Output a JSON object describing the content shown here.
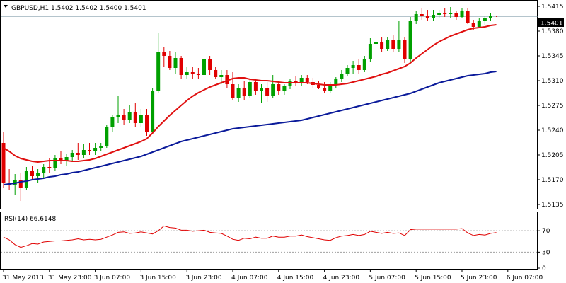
{
  "symbol_header": "GBPUSD,H1  1.5402 1.5402 1.5400 1.5401",
  "colors": {
    "frame": "#000000",
    "candle_up": "#00a000",
    "candle_down": "#e00000",
    "sma_fast": "#e01010",
    "sma_slow": "#0a1a9a",
    "rsi_line": "#e00000",
    "rsi_levels": "#a0a0a0",
    "current_price_line": "#6a8a9a"
  },
  "chart_data": [
    {
      "type": "candlestick",
      "title": "",
      "symbol": "GBPUSD",
      "timeframe": "H1",
      "ohlc_label": "1.5402 1.5402 1.5400 1.5401",
      "current_price": 1.5401,
      "current_price_label": "1.5401",
      "ylim": [
        1.5131,
        1.5421
      ],
      "y_ticks": [
        "1.5415",
        "1.5380",
        "1.5345",
        "1.5310",
        "1.5275",
        "1.5240",
        "1.5205",
        "1.5170",
        "1.5135"
      ],
      "y_tick_values": [
        1.5415,
        1.538,
        1.5345,
        1.531,
        1.5275,
        1.524,
        1.5205,
        1.517,
        1.5135
      ],
      "x_ticks": [
        "31 May 2013",
        "31 May 23:00",
        "3 Jun 07:00",
        "3 Jun 15:00",
        "3 Jun 23:00",
        "4 Jun 07:00",
        "4 Jun 15:00",
        "4 Jun 23:00",
        "5 Jun 07:00",
        "5 Jun 15:00",
        "5 Jun 23:00",
        "6 Jun 07:00"
      ],
      "x_tick_index": [
        0,
        8,
        16,
        24,
        32,
        40,
        48,
        56,
        64,
        72,
        80,
        88
      ],
      "candles": [
        [
          1.5222,
          1.5238,
          1.5158,
          1.5165
        ],
        [
          1.5165,
          1.5185,
          1.5155,
          1.5162
        ],
        [
          1.5162,
          1.5178,
          1.5148,
          1.517
        ],
        [
          1.517,
          1.518,
          1.514,
          1.5158
        ],
        [
          1.5158,
          1.5188,
          1.5155,
          1.5182
        ],
        [
          1.5182,
          1.519,
          1.517,
          1.5175
        ],
        [
          1.5175,
          1.5185,
          1.5165,
          1.518
        ],
        [
          1.518,
          1.5192,
          1.5172,
          1.5188
        ],
        [
          1.5188,
          1.52,
          1.518,
          1.5186
        ],
        [
          1.5186,
          1.5205,
          1.5183,
          1.52
        ],
        [
          1.52,
          1.521,
          1.5192,
          1.5196
        ],
        [
          1.5196,
          1.5206,
          1.519,
          1.5202
        ],
        [
          1.5202,
          1.5212,
          1.5196,
          1.5208
        ],
        [
          1.5208,
          1.5222,
          1.5198,
          1.5205
        ],
        [
          1.5205,
          1.522,
          1.52,
          1.5212
        ],
        [
          1.5212,
          1.5222,
          1.5205,
          1.521
        ],
        [
          1.521,
          1.5222,
          1.5205,
          1.5215
        ],
        [
          1.5215,
          1.5222,
          1.521,
          1.5218
        ],
        [
          1.5218,
          1.5248,
          1.5215,
          1.5245
        ],
        [
          1.5245,
          1.5262,
          1.5238,
          1.5258
        ],
        [
          1.5258,
          1.5288,
          1.525,
          1.5262
        ],
        [
          1.5262,
          1.527,
          1.5248,
          1.5255
        ],
        [
          1.5255,
          1.5275,
          1.525,
          1.5265
        ],
        [
          1.5265,
          1.5278,
          1.5245,
          1.525
        ],
        [
          1.525,
          1.527,
          1.5245,
          1.5262
        ],
        [
          1.5262,
          1.527,
          1.5232,
          1.5238
        ],
        [
          1.5238,
          1.53,
          1.5235,
          1.5295
        ],
        [
          1.5295,
          1.5378,
          1.5292,
          1.535
        ],
        [
          1.535,
          1.5358,
          1.533,
          1.5345
        ],
        [
          1.5345,
          1.5352,
          1.5325,
          1.5328
        ],
        [
          1.5328,
          1.535,
          1.532,
          1.5342
        ],
        [
          1.5342,
          1.5345,
          1.5312,
          1.5318
        ],
        [
          1.5318,
          1.533,
          1.5312,
          1.5322
        ],
        [
          1.5322,
          1.533,
          1.5312,
          1.532
        ],
        [
          1.532,
          1.5328,
          1.5312,
          1.5318
        ],
        [
          1.5318,
          1.5345,
          1.5315,
          1.534
        ],
        [
          1.534,
          1.5345,
          1.5318,
          1.5325
        ],
        [
          1.5325,
          1.533,
          1.5312,
          1.5315
        ],
        [
          1.5315,
          1.5325,
          1.5305,
          1.5318
        ],
        [
          1.5318,
          1.5325,
          1.53,
          1.5305
        ],
        [
          1.5305,
          1.5322,
          1.5282,
          1.5285
        ],
        [
          1.5285,
          1.5305,
          1.528,
          1.53
        ],
        [
          1.53,
          1.531,
          1.5282,
          1.5288
        ],
        [
          1.5288,
          1.5312,
          1.5285,
          1.5308
        ],
        [
          1.5308,
          1.5312,
          1.529,
          1.5295
        ],
        [
          1.5295,
          1.5305,
          1.5278,
          1.53
        ],
        [
          1.53,
          1.5308,
          1.528,
          1.5288
        ],
        [
          1.5288,
          1.5318,
          1.5285,
          1.5305
        ],
        [
          1.5305,
          1.531,
          1.529,
          1.5295
        ],
        [
          1.5295,
          1.5305,
          1.529,
          1.5302
        ],
        [
          1.5302,
          1.5312,
          1.5298,
          1.531
        ],
        [
          1.531,
          1.5316,
          1.5302,
          1.5306
        ],
        [
          1.5306,
          1.5318,
          1.5302,
          1.5314
        ],
        [
          1.5314,
          1.5318,
          1.5305,
          1.5308
        ],
        [
          1.5308,
          1.5314,
          1.53,
          1.5304
        ],
        [
          1.5304,
          1.531,
          1.5298,
          1.53
        ],
        [
          1.53,
          1.5308,
          1.5292,
          1.5296
        ],
        [
          1.5296,
          1.5308,
          1.5292,
          1.5304
        ],
        [
          1.5304,
          1.5315,
          1.53,
          1.5312
        ],
        [
          1.5312,
          1.5325,
          1.5308,
          1.532
        ],
        [
          1.532,
          1.5332,
          1.5316,
          1.5328
        ],
        [
          1.5328,
          1.5338,
          1.532,
          1.5332
        ],
        [
          1.5332,
          1.534,
          1.532,
          1.5325
        ],
        [
          1.5325,
          1.5345,
          1.5322,
          1.534
        ],
        [
          1.534,
          1.537,
          1.5336,
          1.5362
        ],
        [
          1.5362,
          1.5372,
          1.5352,
          1.5365
        ],
        [
          1.5365,
          1.5372,
          1.535,
          1.5355
        ],
        [
          1.5355,
          1.5372,
          1.5352,
          1.5368
        ],
        [
          1.5368,
          1.5375,
          1.535,
          1.5355
        ],
        [
          1.5355,
          1.5395,
          1.535,
          1.5368
        ],
        [
          1.5368,
          1.5372,
          1.5335,
          1.534
        ],
        [
          1.534,
          1.54,
          1.5335,
          1.5395
        ],
        [
          1.5395,
          1.5408,
          1.539,
          1.5404
        ],
        [
          1.5404,
          1.5412,
          1.5396,
          1.5402
        ],
        [
          1.5402,
          1.541,
          1.5395,
          1.5398
        ],
        [
          1.5398,
          1.541,
          1.5394,
          1.5403
        ],
        [
          1.5403,
          1.541,
          1.5398,
          1.5406
        ],
        [
          1.5406,
          1.5412,
          1.54,
          1.5404
        ],
        [
          1.5404,
          1.5414,
          1.5398,
          1.5405
        ],
        [
          1.5405,
          1.5408,
          1.5396,
          1.54
        ],
        [
          1.54,
          1.5412,
          1.5398,
          1.5408
        ],
        [
          1.5408,
          1.5412,
          1.539,
          1.5392
        ],
        [
          1.5392,
          1.5396,
          1.5382,
          1.5386
        ],
        [
          1.5386,
          1.5398,
          1.5384,
          1.5394
        ],
        [
          1.5394,
          1.5402,
          1.5388,
          1.5398
        ],
        [
          1.5398,
          1.5405,
          1.5395,
          1.5402
        ],
        [
          1.5402,
          1.5402,
          1.54,
          1.5401
        ]
      ],
      "series": [
        {
          "kind": "sma",
          "values": [
            1.5215,
            1.521,
            1.5204,
            1.52,
            1.5198,
            1.5196,
            1.5195,
            1.5196,
            1.5197,
            1.5197,
            1.5197,
            1.5197,
            1.5196,
            1.5196,
            1.5197,
            1.5198,
            1.52,
            1.5203,
            1.5206,
            1.5209,
            1.5212,
            1.5215,
            1.5218,
            1.5221,
            1.5224,
            1.5228,
            1.5236,
            1.5245,
            1.5253,
            1.5261,
            1.5268,
            1.5275,
            1.5282,
            1.5288,
            1.5293,
            1.5297,
            1.5301,
            1.5304,
            1.5307,
            1.531,
            1.5313,
            1.5314,
            1.5314,
            1.5312,
            1.5311,
            1.531,
            1.531,
            1.5309,
            1.5308,
            1.5307,
            1.5307,
            1.5307,
            1.5307,
            1.5307,
            1.5306,
            1.5305,
            1.5304,
            1.5304,
            1.5304,
            1.5305,
            1.5306,
            1.5308,
            1.531,
            1.5312,
            1.5314,
            1.5316,
            1.5319,
            1.5321,
            1.5324,
            1.5327,
            1.533,
            1.5335,
            1.5342,
            1.5348,
            1.5354,
            1.536,
            1.5365,
            1.5369,
            1.5373,
            1.5376,
            1.5379,
            1.5382,
            1.5384,
            1.5385,
            1.5386,
            1.5388,
            1.5389
          ]
        },
        {
          "kind": "sma",
          "values": [
            1.5163,
            1.5164,
            1.5165,
            1.5167,
            1.5168,
            1.517,
            1.5171,
            1.5172,
            1.5174,
            1.5175,
            1.5177,
            1.5178,
            1.518,
            1.5181,
            1.5183,
            1.5185,
            1.5187,
            1.5189,
            1.5191,
            1.5193,
            1.5195,
            1.5197,
            1.5199,
            1.5201,
            1.5203,
            1.5206,
            1.5209,
            1.5212,
            1.5215,
            1.5218,
            1.5221,
            1.5224,
            1.5226,
            1.5228,
            1.523,
            1.5232,
            1.5234,
            1.5236,
            1.5238,
            1.524,
            1.5242,
            1.5243,
            1.5244,
            1.5245,
            1.5246,
            1.5247,
            1.5248,
            1.5249,
            1.525,
            1.5251,
            1.5252,
            1.5253,
            1.5254,
            1.5256,
            1.5258,
            1.526,
            1.5262,
            1.5264,
            1.5266,
            1.5268,
            1.527,
            1.5272,
            1.5274,
            1.5276,
            1.5278,
            1.528,
            1.5282,
            1.5284,
            1.5286,
            1.5288,
            1.529,
            1.5292,
            1.5295,
            1.5298,
            1.5301,
            1.5304,
            1.5307,
            1.5309,
            1.5311,
            1.5313,
            1.5315,
            1.5317,
            1.5318,
            1.5319,
            1.532,
            1.5322,
            1.5323
          ]
        }
      ]
    },
    {
      "type": "line",
      "title": "RSI(14) 66.6148",
      "ylim": [
        0,
        100
      ],
      "levels": [
        70,
        30
      ],
      "y_ticks": [
        "70",
        "30",
        "0"
      ],
      "y_tick_values": [
        70,
        30,
        0
      ],
      "series": [
        {
          "name": "RSI(14)",
          "values": [
            58,
            53,
            44,
            39,
            42,
            46,
            45,
            49,
            50,
            51,
            51,
            52,
            53,
            55,
            53,
            54,
            53,
            54,
            58,
            62,
            67,
            68,
            65,
            66,
            68,
            66,
            64,
            70,
            79,
            76,
            75,
            71,
            71,
            69,
            70,
            71,
            67,
            66,
            65,
            60,
            54,
            52,
            56,
            55,
            58,
            56,
            56,
            60,
            58,
            58,
            60,
            60,
            62,
            59,
            57,
            55,
            53,
            52,
            57,
            60,
            61,
            63,
            61,
            63,
            69,
            67,
            65,
            67,
            65,
            66,
            61,
            72,
            73,
            73,
            73,
            73,
            73,
            73,
            73,
            73,
            74,
            66,
            61,
            63,
            62,
            65,
            66.6
          ]
        }
      ]
    }
  ]
}
